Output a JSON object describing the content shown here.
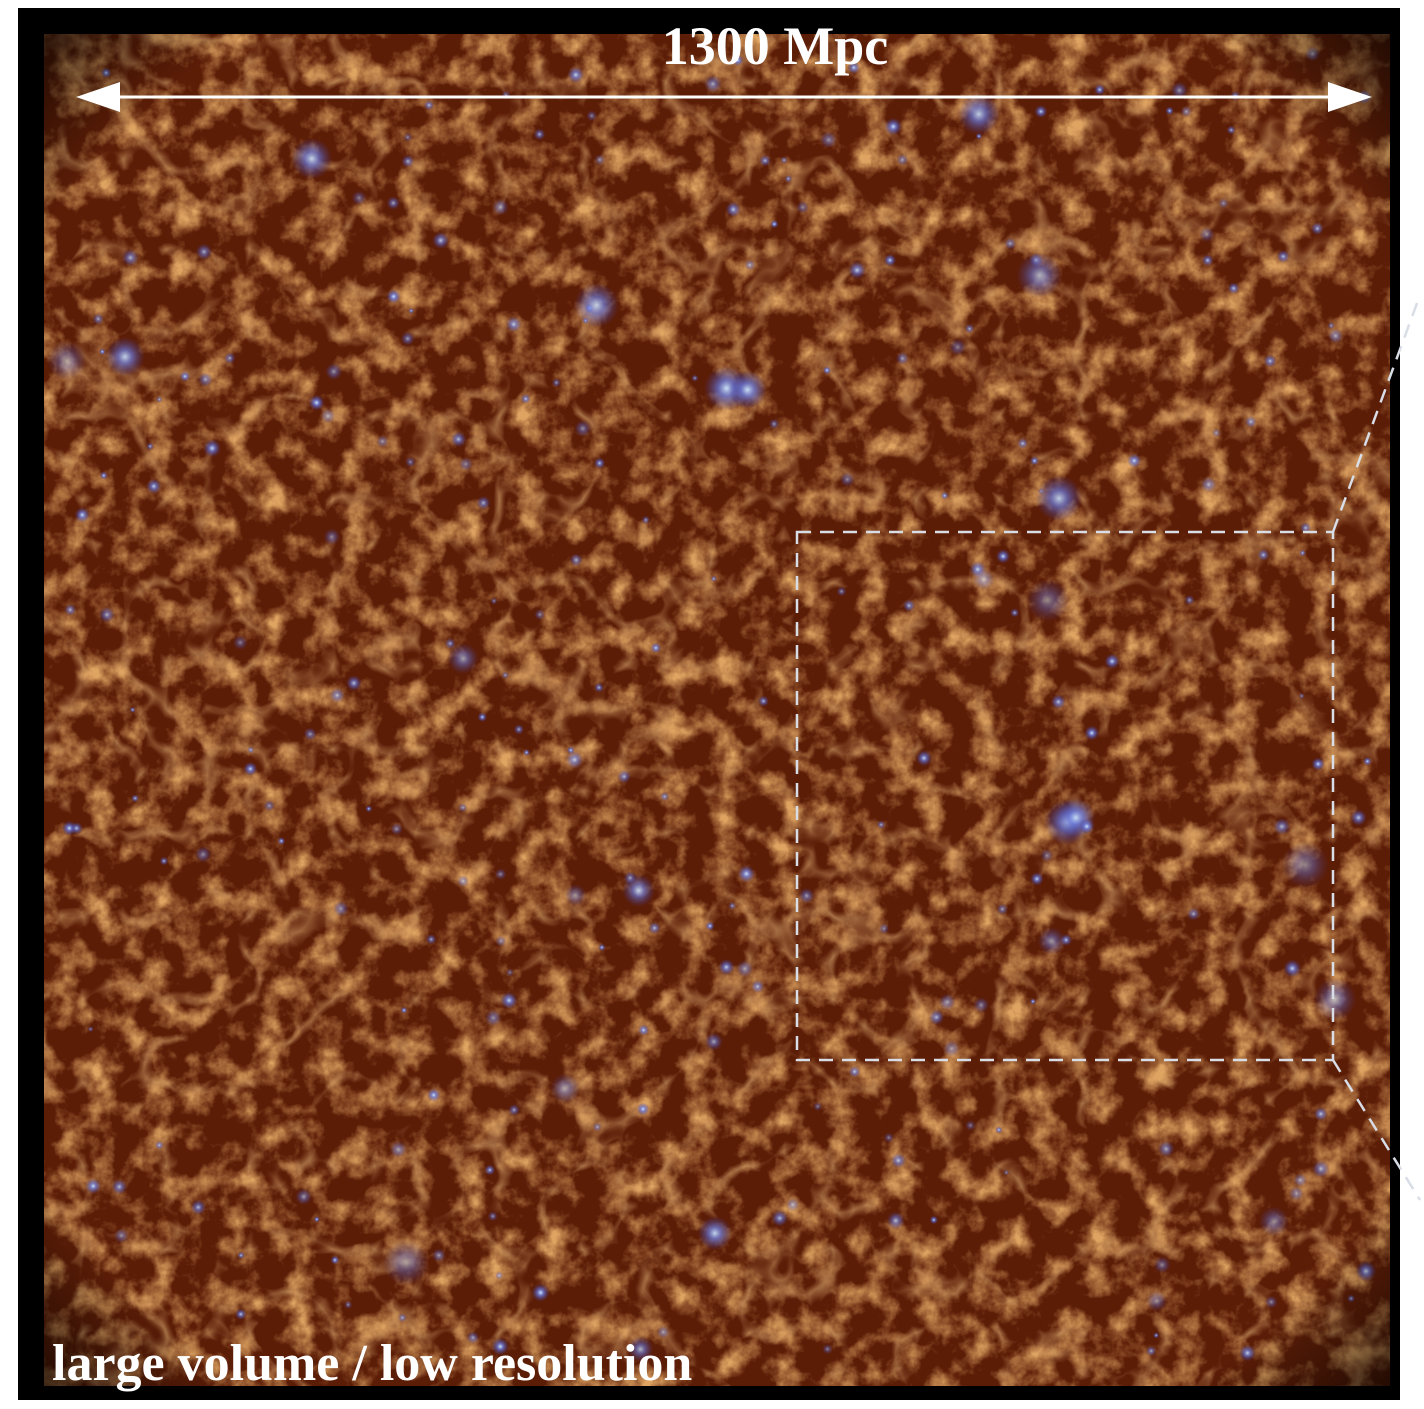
{
  "scale_label": "1300 Mpc",
  "caption": "large volume / low resolution"
}
